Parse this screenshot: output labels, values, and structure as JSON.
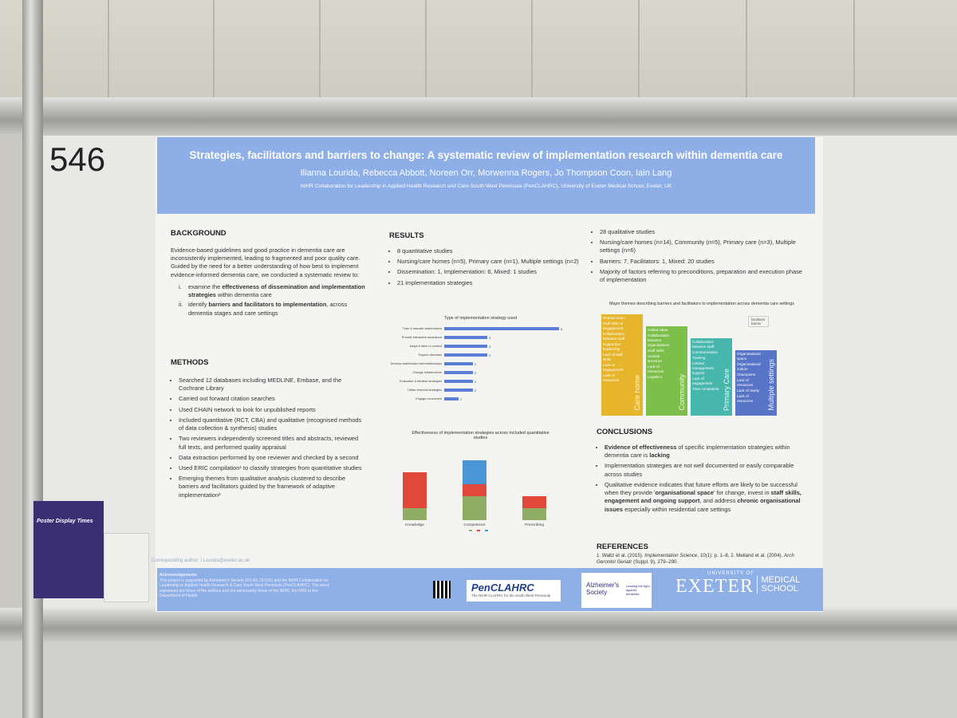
{
  "board_number": "546",
  "header": {
    "title": "Strategies, facilitators and barriers to change: A systematic review of implementation research within dementia care",
    "authors": "Ilianna Lourida, Rebecca Abbott, Noreen Orr, Morwenna Rogers, Jo Thompson Coon, Iain Lang",
    "affiliation": "NIHR Collaboration for Leadership in Applied Health Research and Care South West Peninsula (PenCLAHRC), University of Exeter Medical School, Exeter, UK"
  },
  "background": {
    "heading": "BACKGROUND",
    "intro": "Evidence-based guidelines and good practice in dementia care are inconsistently implemented, leading to fragmented and poor quality care. Guided by the need for a better understanding of how best to implement evidence-informed dementia care, we conducted a systematic review to:",
    "aims": [
      {
        "marker": "i.",
        "text": [
          "examine the ",
          {
            "bold": "effectiveness of dissemination and implementation strategies"
          },
          " within dementia care"
        ]
      },
      {
        "marker": "ii.",
        "text": [
          "identify ",
          {
            "bold": "barriers and facilitators to implementation"
          },
          ", across dementia stages and care settings"
        ]
      }
    ]
  },
  "methods": {
    "heading": "METHODS",
    "items": [
      "Searched 12 databases including MEDLINE, Embase, and the Cochrane Library",
      "Carried out forward citation searches",
      "Used CHAIN network to look for unpublished reports",
      "Included quantitative (RCT, CBA) and qualitative (recognised methods of data collection & synthesis) studies",
      "Two reviewers independently screened titles and abstracts, reviewed full texts, and performed quality appraisal",
      "Data extraction performed by one reviewer and checked by a second",
      "Used ERIC compilation¹ to classify strategies from quantitative studies",
      "Emerging themes from qualitative analysis clustered to describe barriers and facilitators guided by the framework of adaptive implementation²"
    ]
  },
  "results": {
    "heading": "RESULTS",
    "items": [
      "8 quantitative studies",
      "Nursing/care homes (n=5), Primary care (n=1), Multiple settings (n=2)",
      "Dissemination: 1, Implementation: 6, Mixed: 1 studies",
      "21 implementation strategies"
    ],
    "items_continued": [
      "28 qualitative studies",
      "Nursing/care homes (n=14), Community (n=5), Primary care (n=3), Multiple settings (n=6)",
      "Barriers: 7, Facilitators: 1, Mixed: 20 studies",
      "Majority of factors referring to preconditions, preparation and execution phase of implementation"
    ]
  },
  "chart_data": [
    {
      "type": "hbar",
      "title": "Type of implementation strategy used",
      "categories": [
        "Train & educate stakeholders",
        "Provide interactive assistance",
        "Adapt & tailor to context",
        "Support clinicians",
        "Develop stakeholder interrelationships",
        "Change infrastructure",
        "Evaluative & iterative strategies",
        "Utilise financial strategies",
        "Engage consumers"
      ],
      "values": [
        8,
        3,
        3,
        3,
        2,
        2,
        2,
        2,
        1
      ],
      "color": "#5b7fd6"
    },
    {
      "type": "stacked_bar",
      "title": "Effectiveness of implementation strategies across included quantitative studies",
      "categories": [
        "Knowledge",
        "Competence",
        "Prescribing"
      ],
      "series": [
        {
          "color": "#8fad63",
          "values": [
            1,
            2,
            1
          ]
        },
        {
          "color": "#e0483a",
          "values": [
            3,
            1,
            1
          ]
        },
        {
          "color": "#4a95d6",
          "values": [
            0,
            2,
            0
          ]
        }
      ]
    }
  ],
  "themes": {
    "title": "Major themes describing barriers and facilitators to implementation across dementia care settings",
    "legend": [
      "facilitator",
      "barrier"
    ],
    "columns": [
      {
        "label": "Care home",
        "color": "#e6b52c",
        "items": [
          "Shared vision",
          "Staff skills & engagement",
          "Collaboration between staff",
          "Supportive leadership",
          "Lack of staff skills",
          "Lack of engagement",
          "Lack of resources"
        ]
      },
      {
        "label": "Community",
        "color": "#7dbf4b",
        "items": [
          "Added value",
          "Collaboration between organisations",
          "Staff skills",
          "Unclear structure",
          "Lack of resources",
          "Logistics"
        ]
      },
      {
        "label": "Primary Care",
        "color": "#47b6ad",
        "items": [
          "Collaboration between staff",
          "Communication",
          "Training",
          "Limited management support",
          "Lack of engagement",
          "Time constraints"
        ]
      },
      {
        "label": "Multiple settings",
        "color": "#5874c6",
        "items": [
          "Organisational space",
          "Organisational culture",
          "Champions",
          "Lack of resources",
          "Lack of clarity",
          "Lack of resources"
        ]
      }
    ]
  },
  "conclusions": {
    "heading": "CONCLUSIONS",
    "items": [
      [
        {
          "bold": "Evidence of effectiveness"
        },
        " of specific implementation strategies within dementia care is ",
        {
          "bold": "lacking"
        }
      ],
      [
        "Implementation strategies are not well documented or easily comparable across studies"
      ],
      [
        "Qualitative evidence indicates that future efforts are likely to be successful when they provide '",
        {
          "bold": "organisational space"
        },
        "' for change, invest in ",
        {
          "bold": "staff skills, engagement and ongoing support"
        },
        ", and address ",
        {
          "bold": "chronic organisational issues"
        },
        " especially within residential care settings"
      ]
    ]
  },
  "references": {
    "heading": "REFERENCES",
    "text": [
      "1. Waltz et al. (2015). ",
      {
        "italic": "Implementation Science"
      },
      ", 10(1): p. 1–8, 2. Meiland et al. (2004). ",
      {
        "italic": "Arch Gerontol Geriatr"
      },
      " (Suppl. 9), 279–290."
    ]
  },
  "footer": {
    "contact": "Corresponding author: I.Lourida@exeter.ac.uk",
    "ack_heading": "Acknowledgements",
    "ack_text": "This project is supported by Alzheimer's Society (RS AS 16-016) and the NIHR Collaboration for Leadership in Applied Health Research & Care South West Peninsula (PenCLAHRC). The views expressed are those of the authors and not necessarily those of the NIHR, the NHS or the Department of Health.",
    "pen_logo": "PenCLAHRC",
    "pen_sub": "The NIHR CLAHRC for the South West Peninsula",
    "alz_logo": "Alzheimer's Society",
    "alz_sub": "Leading the fight against dementia",
    "uni_top": "UNIVERSITY OF",
    "uni_name": "EXETER",
    "uni_school": "MEDICAL SCHOOL"
  },
  "side_sign": "Poster Display Times"
}
